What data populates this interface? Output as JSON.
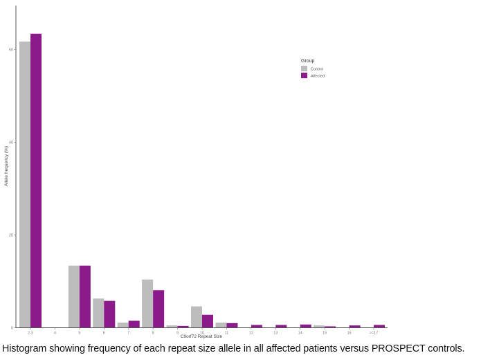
{
  "chart_data": {
    "type": "bar",
    "title": "",
    "xlabel": "C9orf72 Repeat Size",
    "ylabel": "Allele frequency (%)",
    "ylim": [
      0,
      70
    ],
    "yticks": [
      0,
      20,
      40,
      60
    ],
    "grid": false,
    "legend_position": "upper-right-inside",
    "legend_title": "Group",
    "categories": [
      "2-3",
      "4",
      "5",
      "6",
      "7",
      "8",
      "9",
      "10",
      "11",
      "12",
      "13",
      "14",
      "15",
      "16",
      ">=17"
    ],
    "series": [
      {
        "name": "Control",
        "color": "#bdbdbd",
        "values": [
          61.7,
          0,
          13.4,
          6.3,
          1.1,
          10.4,
          0.5,
          4.6,
          1.1,
          0,
          0,
          0,
          0.5,
          0,
          0
        ]
      },
      {
        "name": "Affected",
        "color": "#8b1a8b",
        "values": [
          63.4,
          0,
          13.4,
          5.8,
          1.5,
          8.1,
          0.4,
          2.8,
          1.0,
          0.6,
          0.6,
          0.7,
          0.3,
          0.5,
          0.6
        ]
      }
    ]
  },
  "caption": "Histogram showing frequency of each repeat size allele in all affected patients versus PROSPECT controls."
}
